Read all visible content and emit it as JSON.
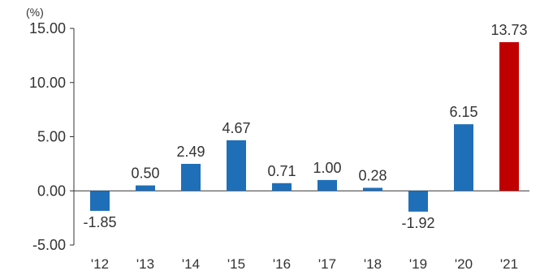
{
  "chart_data": {
    "type": "bar",
    "unit_label": "(%)",
    "categories": [
      "'12",
      "'13",
      "'14",
      "'15",
      "'16",
      "'17",
      "'18",
      "'19",
      "'20",
      "'21"
    ],
    "values": [
      -1.85,
      0.5,
      2.49,
      4.67,
      0.71,
      1.0,
      0.28,
      -1.92,
      6.15,
      13.73
    ],
    "value_labels": [
      "-1.85",
      "0.50",
      "2.49",
      "4.67",
      "0.71",
      "1.00",
      "0.28",
      "-1.92",
      "6.15",
      "13.73"
    ],
    "y_ticks": [
      "15.00",
      "10.00",
      "5.00",
      "0.00",
      "-5.00"
    ],
    "y_tick_values": [
      15,
      10,
      5,
      0,
      -5
    ],
    "ylim": [
      -5,
      15
    ],
    "grid": false,
    "bar_color": "#1f6fb8",
    "highlight_color": "#c00000",
    "highlight_index": 9
  }
}
